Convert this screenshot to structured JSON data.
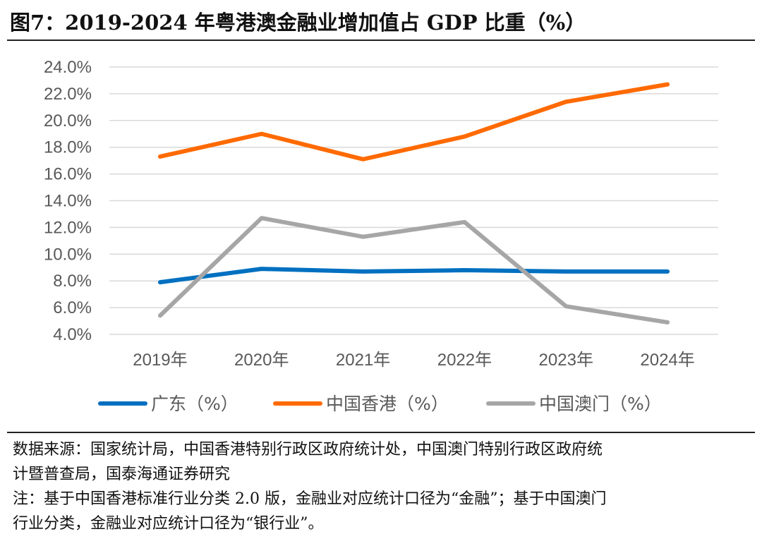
{
  "title": "图7：2019-2024 年粤港澳金融业增加值占 GDP 比重（%）",
  "chart_data": {
    "type": "line",
    "categories": [
      "2019年",
      "2020年",
      "2021年",
      "2022年",
      "2023年",
      "2024年"
    ],
    "series": [
      {
        "name": "广东（%）",
        "color": "#0070C0",
        "values": [
          7.9,
          8.9,
          8.7,
          8.8,
          8.7,
          8.7
        ]
      },
      {
        "name": "中国香港（%）",
        "color": "#FF6A00",
        "values": [
          17.3,
          19.0,
          17.1,
          18.8,
          21.4,
          22.7
        ]
      },
      {
        "name": "中国澳门（%）",
        "color": "#A6A6A6",
        "values": [
          5.4,
          12.7,
          11.3,
          12.4,
          6.1,
          4.9
        ]
      }
    ],
    "yticks": [
      "4.0%",
      "6.0%",
      "8.0%",
      "10.0%",
      "12.0%",
      "14.0%",
      "16.0%",
      "18.0%",
      "20.0%",
      "22.0%",
      "24.0%"
    ],
    "ylim": [
      4,
      24
    ],
    "grid": true,
    "legend": "bottom",
    "xlabel": "",
    "ylabel": ""
  },
  "source": {
    "line1": "数据来源：国家统计局，中国香港特别行政区政府统计处，中国澳门特别行政区政府统",
    "line2": "计暨普查局，国泰海通证券研究",
    "line3": "注：基于中国香港标准行业分类 2.0 版，金融业对应统计口径为“金融”；基于中国澳门",
    "line4": "行业分类，金融业对应统计口径为“银行业”。"
  }
}
